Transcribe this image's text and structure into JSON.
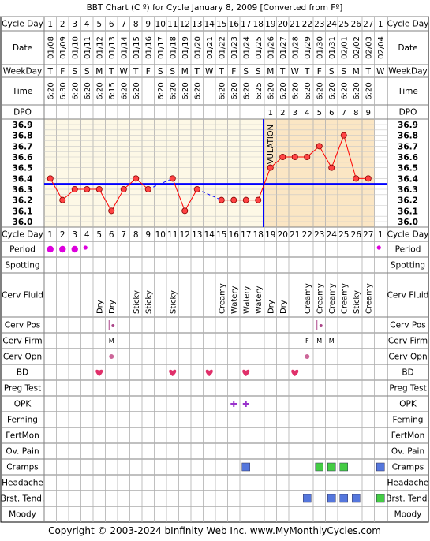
{
  "title": "BBT Chart (C º) for Cycle January 8, 2009  [Converted from Fº]",
  "copyright": "Copyright © 2003-2024 bInfinity Web Inc.     www.MyMonthlyCycles.com",
  "row_labels": {
    "cycle_day": "Cycle Day",
    "date": "Date",
    "weekday": "WeekDay",
    "time": "Time",
    "dpo": "DPO",
    "period": "Period",
    "spotting": "Spotting",
    "cerv_fluid": "Cerv Fluid",
    "cerv_pos": "Cerv Pos",
    "cerv_firm": "Cerv Firm",
    "cerv_opn": "Cerv Opn",
    "bd": "BD",
    "preg_test": "Preg Test",
    "opk": "OPK",
    "ferning": "Ferning",
    "fertmon": "FertMon",
    "ov_pain": "Ov. Pain",
    "cramps": "Cramps",
    "headache": "Headache",
    "brst_tend": "Brst. Tend.",
    "moody": "Moody"
  },
  "colors": {
    "grid": "#808080",
    "postovulation_fill": "#fbe6c4",
    "preovulation_fill": "#fdf8e6",
    "coverline": "#0000ff",
    "ovulation_line": "#0000ff",
    "temp_line": "#ff0000",
    "temp_point": "#ff4444",
    "period": "#dd00dd",
    "heart": "#e0306a",
    "opk": "#9933cc",
    "cramps_blue": "#5577dd",
    "cramps_green": "#44cc44"
  },
  "chart_data": {
    "type": "line",
    "cycle_days": [
      1,
      2,
      3,
      4,
      5,
      6,
      7,
      8,
      9,
      10,
      11,
      12,
      13,
      14,
      15,
      16,
      17,
      18,
      19,
      20,
      21,
      22,
      23,
      24,
      25,
      26,
      27,
      1
    ],
    "dates": [
      "01/08",
      "01/09",
      "01/10",
      "01/11",
      "01/12",
      "01/13",
      "01/14",
      "01/15",
      "01/16",
      "01/17",
      "01/18",
      "01/19",
      "01/20",
      "01/21",
      "01/22",
      "01/23",
      "01/24",
      "01/25",
      "01/26",
      "01/27",
      "01/28",
      "01/29",
      "01/30",
      "01/31",
      "02/01",
      "02/02",
      "02/03",
      "02/04"
    ],
    "weekdays": [
      "T",
      "F",
      "S",
      "S",
      "M",
      "T",
      "W",
      "T",
      "F",
      "S",
      "S",
      "M",
      "T",
      "W",
      "T",
      "F",
      "S",
      "S",
      "M",
      "T",
      "W",
      "T",
      "F",
      "S",
      "S",
      "M",
      "T",
      "W"
    ],
    "times": [
      "6:20",
      "6:30",
      "6:20",
      "6:20",
      "6:20",
      "6:15",
      "6:20",
      "6:20",
      "",
      "6:20",
      "6:20",
      "6:20",
      "6:20",
      "",
      "6:20",
      "6:20",
      "6:20",
      "6:25",
      "6:20",
      "6:20",
      "6:20",
      "6:20",
      "6:20",
      "6:20",
      "6:20",
      "6:20",
      "6:20",
      ""
    ],
    "dpo": [
      "",
      "",
      "",
      "",
      "",
      "",
      "",
      "",
      "",
      "",
      "",
      "",
      "",
      "",
      "",
      "",
      "",
      "",
      "1",
      "2",
      "3",
      "4",
      "5",
      "6",
      "7",
      "8",
      "9",
      ""
    ],
    "temperatures": [
      36.4,
      36.2,
      36.3,
      36.3,
      36.3,
      36.1,
      36.3,
      36.4,
      36.3,
      null,
      36.4,
      36.1,
      36.3,
      null,
      36.2,
      36.2,
      36.2,
      36.2,
      36.5,
      36.6,
      36.6,
      36.6,
      36.7,
      36.5,
      36.8,
      36.4,
      36.4,
      null
    ],
    "y_ticks": [
      "36.9",
      "36.8",
      "36.7",
      "36.6",
      "36.5",
      "36.4",
      "36.3",
      "36.2",
      "36.1",
      "36.0"
    ],
    "ylim": [
      36.0,
      36.9
    ],
    "coverline": 36.35,
    "ovulation_label": "OVULATION",
    "ovulation_after_day_index": 17,
    "period": [
      "big",
      "big",
      "big",
      "small",
      "",
      "",
      "",
      "",
      "",
      "",
      "",
      "",
      "",
      "",
      "",
      "",
      "",
      "",
      "",
      "",
      "",
      "",
      "",
      "",
      "",
      "",
      "",
      "small"
    ],
    "cerv_fluid": [
      "",
      "",
      "",
      "",
      "Dry",
      "Dry",
      "",
      "Sticky",
      "Sticky",
      "",
      "Sticky",
      "",
      "",
      "",
      "Creamy",
      "Watery",
      "Watery",
      "Watery",
      "Dry",
      "Dry",
      "",
      "Creamy",
      "Creamy",
      "Creamy",
      "Creamy",
      "Sticky",
      "Creamy",
      ""
    ],
    "cerv_pos_days": [
      6,
      23
    ],
    "cerv_firm": [
      "",
      "",
      "",
      "",
      "",
      "M",
      "",
      "",
      "",
      "",
      "",
      "",
      "",
      "",
      "",
      "",
      "",
      "",
      "",
      "",
      "",
      "F",
      "M",
      "M",
      "",
      "",
      "",
      ""
    ],
    "cerv_opn_days": [
      6,
      22
    ],
    "bd_days": [
      5,
      11,
      14,
      17,
      21
    ],
    "opk_days": [
      16,
      17
    ],
    "cramps": [
      {
        "day_index": 17,
        "color": "blue"
      },
      {
        "day_index": 23,
        "color": "green"
      },
      {
        "day_index": 24,
        "color": "green"
      },
      {
        "day_index": 25,
        "color": "green"
      },
      {
        "day_index": 28,
        "color": "blue"
      }
    ],
    "brst_tend": [
      {
        "day_index": 22,
        "color": "blue"
      },
      {
        "day_index": 24,
        "color": "blue"
      },
      {
        "day_index": 25,
        "color": "blue"
      },
      {
        "day_index": 26,
        "color": "blue"
      },
      {
        "day_index": 28,
        "color": "green"
      }
    ]
  }
}
